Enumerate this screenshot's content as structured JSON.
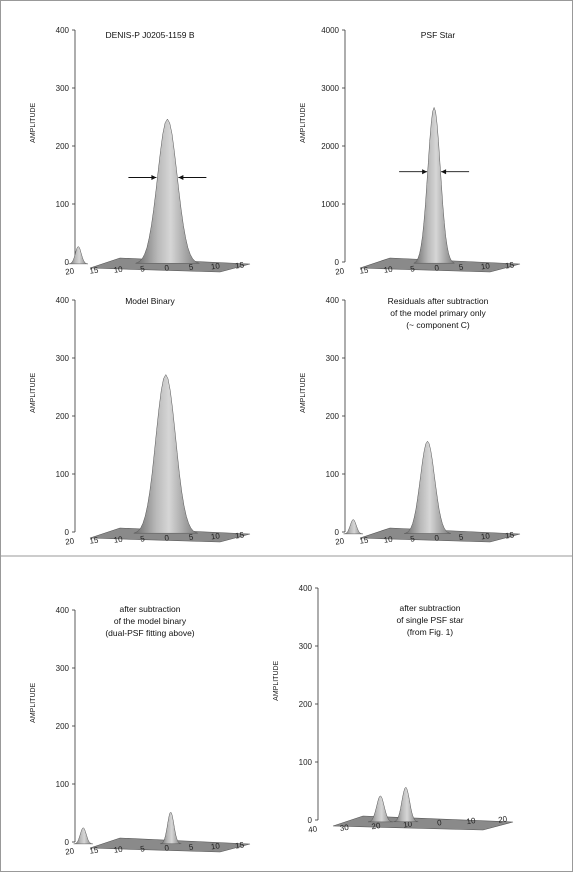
{
  "chart_data": [
    {
      "type": "surface",
      "title_lines": [
        "DENIS-P J0205-1159 B"
      ],
      "ylabel": "AMPLITUDE",
      "y_ticks": [
        "0",
        "100",
        "200",
        "300",
        "400"
      ],
      "ylim": [
        0,
        400
      ],
      "x_ticks": [
        "20",
        "15",
        "10",
        "5",
        "0",
        "5",
        "10",
        "15"
      ],
      "fwhm_arrows": true,
      "peaks": [
        {
          "pos": 0.06,
          "value": 250,
          "width": 0.055
        },
        {
          "pos": -0.48,
          "value": 30,
          "width": 0.012
        }
      ]
    },
    {
      "type": "surface",
      "title_lines": [
        "PSF Star"
      ],
      "ylabel": "AMPLITUDE",
      "y_ticks": [
        "0",
        "1000",
        "2000",
        "3000",
        "4000"
      ],
      "ylim": [
        0,
        4000
      ],
      "x_ticks": [
        "20",
        "15",
        "10",
        "5",
        "0",
        "5",
        "10",
        "15"
      ],
      "fwhm_arrows": true,
      "peaks": [
        {
          "pos": 0.04,
          "value": 2700,
          "width": 0.035
        }
      ]
    },
    {
      "type": "surface",
      "title_lines": [
        "Model Binary"
      ],
      "ylabel": "AMPLITUDE",
      "y_ticks": [
        "0",
        "100",
        "200",
        "300",
        "400"
      ],
      "ylim": [
        0,
        400
      ],
      "x_ticks": [
        "20",
        "15",
        "10",
        "5",
        "0",
        "5",
        "10",
        "15"
      ],
      "fwhm_arrows": false,
      "peaks": [
        {
          "pos": 0.05,
          "value": 275,
          "width": 0.055
        }
      ]
    },
    {
      "type": "surface",
      "title_lines": [
        "Residuals after subtraction",
        "of the model primary only",
        "(~ component C)"
      ],
      "ylabel": "AMPLITUDE",
      "y_ticks": [
        "0",
        "100",
        "200",
        "300",
        "400"
      ],
      "ylim": [
        0,
        400
      ],
      "x_ticks": [
        "20",
        "15",
        "10",
        "5",
        "0",
        "5",
        "10",
        "15"
      ],
      "fwhm_arrows": false,
      "peaks": [
        {
          "pos": 0.0,
          "value": 160,
          "width": 0.04
        },
        {
          "pos": -0.45,
          "value": 25,
          "width": 0.012
        }
      ]
    },
    {
      "type": "surface",
      "title_lines": [
        "after subtraction",
        "of the model binary",
        "(dual-PSF fitting above)"
      ],
      "ylabel": "AMPLITUDE",
      "y_ticks": [
        "0",
        "100",
        "200",
        "300",
        "400"
      ],
      "ylim": [
        0,
        400
      ],
      "x_ticks": [
        "20",
        "15",
        "10",
        "5",
        "0",
        "5",
        "10",
        "15"
      ],
      "fwhm_arrows": false,
      "peaks": [
        {
          "pos": 0.08,
          "value": 55,
          "width": 0.018
        },
        {
          "pos": -0.45,
          "value": 28,
          "width": 0.012
        }
      ]
    },
    {
      "type": "surface",
      "title_lines": [
        "after subtraction",
        "of single PSF star",
        "(from Fig. 1)"
      ],
      "ylabel": "AMPLITUDE",
      "y_ticks": [
        "0",
        "100",
        "200",
        "300",
        "400"
      ],
      "ylim": [
        0,
        400
      ],
      "x_ticks": [
        "40",
        "30",
        "20",
        "10",
        "0",
        "10",
        "20"
      ],
      "fwhm_arrows": false,
      "peaks": [
        {
          "pos": -0.05,
          "value": 60,
          "width": 0.018
        },
        {
          "pos": -0.18,
          "value": 45,
          "width": 0.018
        }
      ]
    }
  ]
}
